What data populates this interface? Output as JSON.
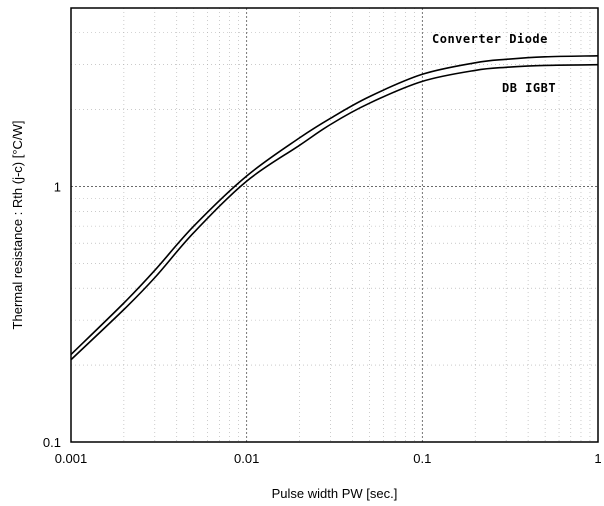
{
  "chart_data": {
    "type": "line",
    "title": "",
    "xlabel": "Pulse width  PW  [sec.]",
    "ylabel": "Thermal resistance  :  Rth (j-c)  [°C/W]",
    "xscale": "log",
    "yscale": "log",
    "xlim": [
      0.001,
      1
    ],
    "ylim": [
      0.1,
      5
    ],
    "grid": true,
    "x_tick_labels": [
      "0.001",
      "0.01",
      "0.1",
      "1"
    ],
    "x_ticks": [
      0.001,
      0.01,
      0.1,
      1
    ],
    "y_tick_labels": [
      "0.1",
      "1"
    ],
    "y_ticks": [
      0.1,
      1
    ],
    "series": [
      {
        "name": "Converter Diode",
        "x": [
          0.001,
          0.002,
          0.003,
          0.005,
          0.01,
          0.02,
          0.03,
          0.05,
          0.1,
          0.2,
          0.3,
          0.5,
          1.0
        ],
        "y": [
          0.22,
          0.35,
          0.47,
          0.7,
          1.1,
          1.55,
          1.85,
          2.25,
          2.75,
          3.05,
          3.15,
          3.22,
          3.25
        ]
      },
      {
        "name": "DB IGBT",
        "x": [
          0.001,
          0.002,
          0.003,
          0.005,
          0.01,
          0.02,
          0.03,
          0.05,
          0.1,
          0.2,
          0.3,
          0.5,
          1.0
        ],
        "y": [
          0.21,
          0.33,
          0.44,
          0.66,
          1.05,
          1.45,
          1.75,
          2.12,
          2.58,
          2.85,
          2.93,
          2.98,
          3.0
        ]
      }
    ]
  }
}
